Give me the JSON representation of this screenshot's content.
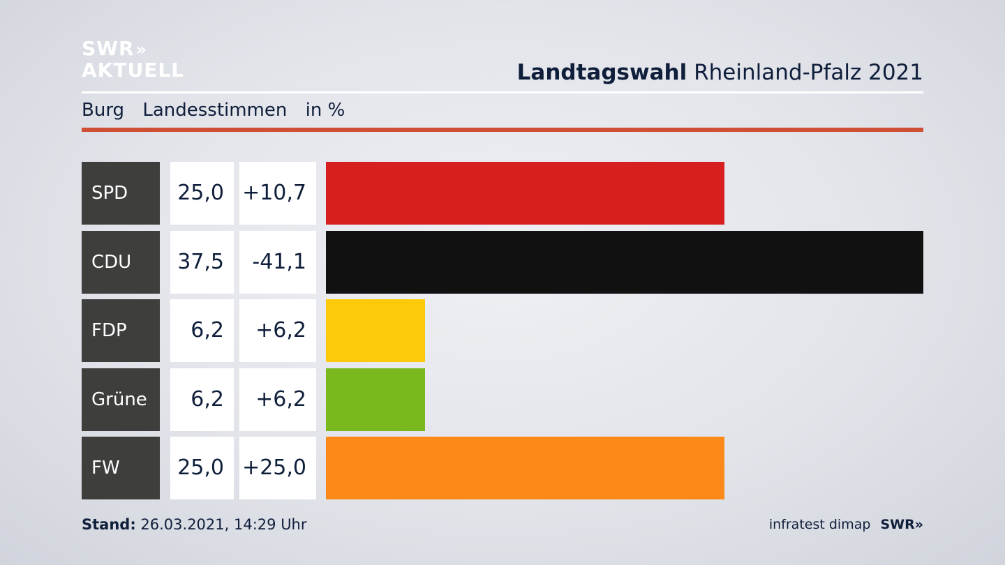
{
  "header": {
    "logo_line1": "SWR",
    "logo_arrows": "»",
    "logo_line2": "AKTUELL",
    "title_bold": "Landtagswahl",
    "title_rest": "Rheinland-Pfalz 2021"
  },
  "subtitle": {
    "place": "Burg",
    "vote_type": "Landesstimmen",
    "unit": "in %"
  },
  "colors": {
    "accent_rule": "#cf4f34",
    "label_bg": "#3e3e3d"
  },
  "chart_data": {
    "type": "bar",
    "orientation": "horizontal",
    "categories": [
      "SPD",
      "CDU",
      "FDP",
      "Grüne",
      "FW"
    ],
    "values": [
      25.0,
      37.5,
      6.2,
      6.2,
      25.0
    ],
    "value_labels": [
      "25,0",
      "37,5",
      "6,2",
      "6,2",
      "25,0"
    ],
    "change_labels": [
      "+10,7",
      "-41,1",
      "+6,2",
      "+6,2",
      "+25,0"
    ],
    "changes": [
      10.7,
      -41.1,
      6.2,
      6.2,
      25.0
    ],
    "bar_colors": [
      "#d71f1f",
      "#111111",
      "#fdca09",
      "#7ab91e",
      "#fd8a18"
    ],
    "xlim": [
      0,
      37.5
    ]
  },
  "footer": {
    "stand_label": "Stand:",
    "stand_value": "26.03.2021, 14:29 Uhr",
    "source": "infratest dimap",
    "brand": "SWR»"
  }
}
